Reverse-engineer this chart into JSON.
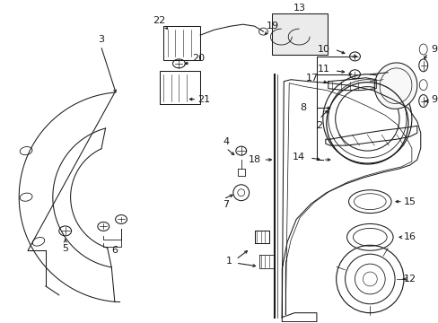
{
  "bg_color": "#ffffff",
  "line_color": "#1a1a1a",
  "fig_width": 4.89,
  "fig_height": 3.6,
  "dpi": 100,
  "lw": 0.75
}
